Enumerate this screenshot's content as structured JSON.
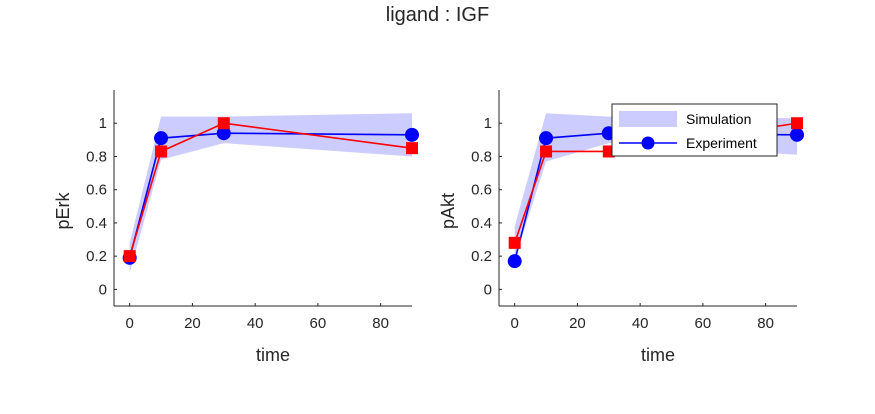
{
  "figure_title": "ligand : IGF",
  "colors": {
    "band": "#ccccff",
    "experiment": "#0000ff",
    "sim_line": "#ff0000",
    "axis": "#262626"
  },
  "legend": {
    "entries": [
      "Simulation",
      "Experiment"
    ],
    "location": "top-right of second panel"
  },
  "chart_data": [
    {
      "type": "line",
      "xlabel": "time",
      "ylabel": "pErk",
      "xlim": [
        -5,
        90
      ],
      "ylim": [
        -0.1,
        1.2
      ],
      "xticks": [
        0,
        20,
        40,
        60,
        80
      ],
      "yticks": [
        0,
        0.2,
        0.4,
        0.6,
        0.8,
        1
      ],
      "x": [
        0,
        10,
        30,
        90
      ],
      "series": [
        {
          "role": "experiment",
          "marker": "circle",
          "values": [
            0.19,
            0.91,
            0.94,
            0.93
          ]
        },
        {
          "role": "simulation_line",
          "marker": "square",
          "values": [
            0.2,
            0.83,
            1.0,
            0.85
          ]
        }
      ],
      "band": {
        "lower": [
          0.1,
          0.78,
          0.88,
          0.8
        ],
        "upper": [
          0.28,
          1.04,
          1.04,
          1.06
        ]
      }
    },
    {
      "type": "line",
      "xlabel": "time",
      "ylabel": "pAkt",
      "xlim": [
        -5,
        90
      ],
      "ylim": [
        -0.1,
        1.2
      ],
      "xticks": [
        0,
        20,
        40,
        60,
        80
      ],
      "yticks": [
        0,
        0.2,
        0.4,
        0.6,
        0.8,
        1
      ],
      "x": [
        0,
        10,
        30,
        90
      ],
      "series": [
        {
          "role": "experiment",
          "marker": "circle",
          "values": [
            0.17,
            0.91,
            0.94,
            0.93
          ]
        },
        {
          "role": "simulation_line",
          "marker": "square",
          "values": [
            0.28,
            0.83,
            0.83,
            1.0
          ]
        }
      ],
      "band": {
        "lower": [
          0.18,
          0.77,
          0.88,
          0.81
        ],
        "upper": [
          0.38,
          1.06,
          1.04,
          1.03
        ]
      }
    }
  ]
}
